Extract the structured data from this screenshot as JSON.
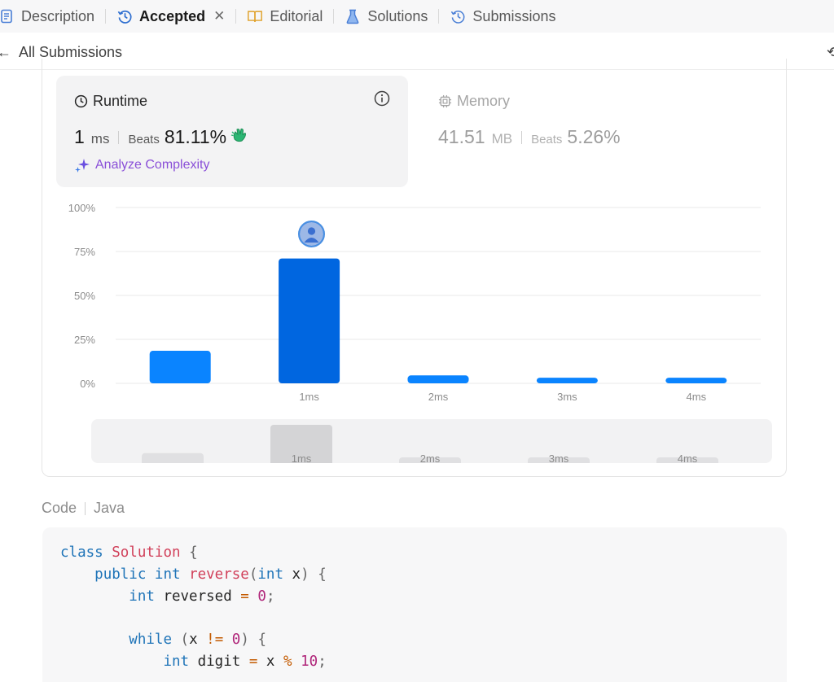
{
  "tabs": [
    {
      "label": "Description",
      "icon": "description-icon"
    },
    {
      "label": "Accepted",
      "icon": "history-icon",
      "active": true
    },
    {
      "label": "Editorial",
      "icon": "book-icon"
    },
    {
      "label": "Solutions",
      "icon": "flask-icon"
    },
    {
      "label": "Submissions",
      "icon": "history-icon"
    }
  ],
  "subheader": {
    "title": "All Submissions"
  },
  "runtime": {
    "label": "Runtime",
    "value": "1",
    "unit": "ms",
    "beats_label": "Beats",
    "beats": "81.11%",
    "analyze_label": "Analyze Complexity"
  },
  "memory": {
    "label": "Memory",
    "value": "41.51",
    "unit": "MB",
    "beats_label": "Beats",
    "beats": "5.26%"
  },
  "colors": {
    "accent": "#0a84ff",
    "selected_bar": "#0066e0",
    "analyze": "#8a4fd8"
  },
  "chart_data": {
    "type": "bar",
    "categories": [
      "",
      "1ms",
      "2ms",
      "3ms",
      "4ms"
    ],
    "values": [
      18.5,
      71,
      4.5,
      3.2,
      3.2
    ],
    "highlight_index": 1,
    "yticks": [
      "100%",
      "75%",
      "50%",
      "25%",
      "0%"
    ],
    "ylim": [
      0,
      100
    ],
    "grid": true
  },
  "scrubber": {
    "labels": [
      "",
      "1ms",
      "2ms",
      "3ms",
      "4ms"
    ],
    "values": [
      18.5,
      71,
      4.5,
      3.2,
      3.2
    ]
  },
  "code": {
    "label": "Code",
    "language": "Java",
    "lines": [
      "class Solution {",
      "    public int reverse(int x) {",
      "        int reversed = 0;",
      "",
      "        while (x != 0) {",
      "            int digit = x % 10;"
    ]
  }
}
